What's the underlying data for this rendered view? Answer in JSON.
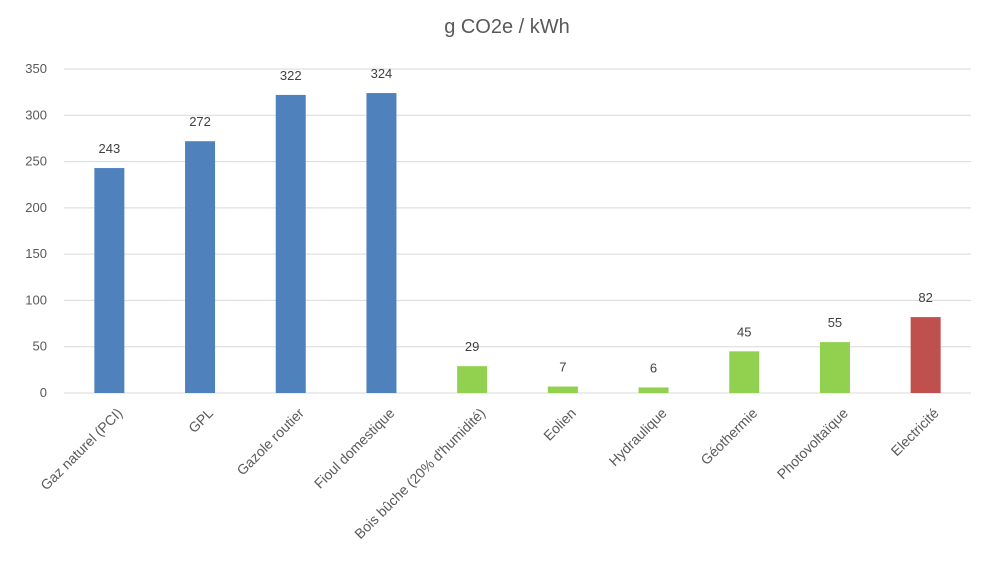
{
  "chart_data": {
    "type": "bar",
    "title": "g CO2e  / kWh",
    "xlabel": "",
    "ylabel": "",
    "ylim": [
      0,
      350
    ],
    "yticks": [
      0,
      50,
      100,
      150,
      200,
      250,
      300,
      350
    ],
    "grid": true,
    "categories": [
      "Gaz naturel (PCI)",
      "GPL",
      "Gazole routier",
      "Fioul domestique",
      "Bois bûche (20% d'humidité)",
      "Eolien",
      "Hydraulique",
      "Géothermie",
      "Photovoltaïque",
      "Electricité"
    ],
    "values": [
      243,
      272,
      322,
      324,
      29,
      7,
      6,
      45,
      55,
      82
    ],
    "bar_colors": [
      "#4f81bd",
      "#4f81bd",
      "#4f81bd",
      "#4f81bd",
      "#92d050",
      "#92d050",
      "#92d050",
      "#92d050",
      "#92d050",
      "#c0504d"
    ],
    "data_labels": [
      "243",
      "272",
      "322",
      "324",
      "29",
      "7",
      "6",
      "45",
      "55",
      "82"
    ]
  }
}
